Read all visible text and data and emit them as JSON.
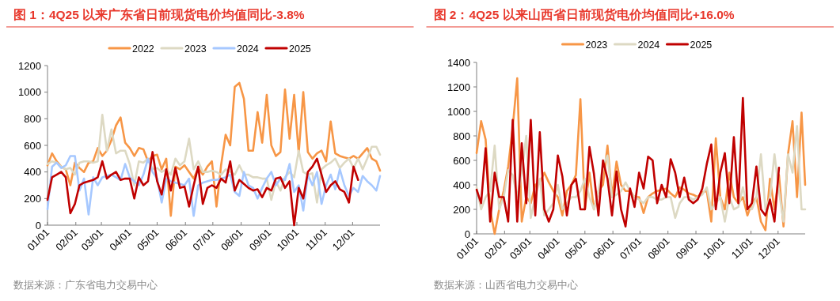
{
  "chart_data": [
    {
      "type": "line",
      "title": "图 1：4Q25 以来广东省日前现货电价均值同比-3.8%",
      "annotations": [
        "数据来源：广东省电力交易中心"
      ],
      "legend": "top",
      "x": [
        "--01-01",
        "--01-06",
        "--01-11",
        "--01-16",
        "--01-21",
        "--01-26",
        "--01-31",
        "--02-05",
        "--02-10",
        "--02-15",
        "--02-20",
        "--02-25",
        "--03-02",
        "--03-07",
        "--03-12",
        "--03-17",
        "--03-22",
        "--03-27",
        "--04-01",
        "--04-06",
        "--04-11",
        "--04-16",
        "--04-21",
        "--04-26",
        "--05-01",
        "--05-06",
        "--05-11",
        "--05-16",
        "--05-21",
        "--05-26",
        "--05-31",
        "--06-05",
        "--06-10",
        "--06-15",
        "--06-20",
        "--06-25",
        "--06-30",
        "--07-05",
        "--07-10",
        "--07-15",
        "--07-20",
        "--07-25",
        "--07-30",
        "--08-04",
        "--08-09",
        "--08-14",
        "--08-19",
        "--08-24",
        "--08-29",
        "--09-03",
        "--09-08",
        "--09-13",
        "--09-18",
        "--09-23",
        "--09-28",
        "--10-03",
        "--10-08",
        "--10-13",
        "--10-18",
        "--10-23",
        "--10-28",
        "--11-02",
        "--11-07",
        "--11-12",
        "--11-17",
        "--11-22",
        "--11-27",
        "--12-02",
        "--12-07",
        "--12-12",
        "--12-17",
        "--12-22",
        "--12-27",
        "--12-31"
      ],
      "xlim": [
        "--01-01",
        "--12-31"
      ],
      "xticks": [
        {
          "value": "--01-01",
          "label": "01/01"
        },
        {
          "value": "--02-01",
          "label": "02/01"
        },
        {
          "value": "--03-01",
          "label": "03/01"
        },
        {
          "value": "--04-01",
          "label": "04/01"
        },
        {
          "value": "--05-01",
          "label": "05/01"
        },
        {
          "value": "--06-01",
          "label": "06/01"
        },
        {
          "value": "--07-01",
          "label": "07/01"
        },
        {
          "value": "--08-01",
          "label": "08/01"
        },
        {
          "value": "--09-01",
          "label": "09/01"
        },
        {
          "value": "--10-01",
          "label": "10/01"
        },
        {
          "value": "--11-01",
          "label": "11/01"
        },
        {
          "value": "--12-01",
          "label": "12/01"
        }
      ],
      "ylim": [
        0,
        1200
      ],
      "yticks": [
        0,
        200,
        400,
        600,
        800,
        1000,
        1200
      ],
      "series": [
        {
          "name": "2022",
          "color": "#f79646",
          "values": [
            450,
            540,
            480,
            440,
            420,
            300,
            470,
            430,
            400,
            470,
            480,
            580,
            520,
            560,
            640,
            750,
            810,
            620,
            580,
            520,
            580,
            570,
            480,
            520,
            530,
            420,
            500,
            70,
            440,
            420,
            450,
            400,
            350,
            430,
            380,
            440,
            480,
            140,
            450,
            680,
            600,
            1040,
            1070,
            950,
            560,
            560,
            850,
            620,
            980,
            600,
            520,
            550,
            1020,
            650,
            980,
            540,
            1000,
            550,
            500,
            540,
            560,
            480,
            780,
            540,
            520,
            510,
            500,
            520,
            500,
            540,
            580,
            500,
            480,
            410
          ]
        },
        {
          "name": "2023",
          "color": "#ddd9c3",
          "values": [
            460,
            480,
            470,
            440,
            420,
            430,
            380,
            470,
            480,
            480,
            470,
            480,
            830,
            560,
            720,
            540,
            560,
            560,
            460,
            300,
            480,
            470,
            500,
            420,
            430,
            400,
            420,
            380,
            500,
            450,
            480,
            650,
            420,
            480,
            400,
            400,
            410,
            400,
            380,
            420,
            400,
            380,
            450,
            380,
            380,
            360,
            360,
            350,
            350,
            190,
            330,
            260,
            360,
            400,
            360,
            560,
            400,
            380,
            390,
            170,
            420,
            450,
            470,
            500,
            430,
            470,
            500,
            430,
            500,
            420,
            500,
            590,
            590,
            530
          ]
        },
        {
          "name": "2024",
          "color": "#a6c8ff",
          "values": [
            120,
            440,
            470,
            430,
            450,
            520,
            520,
            260,
            350,
            80,
            360,
            300,
            360,
            370,
            380,
            360,
            340,
            460,
            360,
            330,
            300,
            380,
            500,
            400,
            350,
            170,
            350,
            330,
            320,
            310,
            300,
            350,
            70,
            300,
            320,
            330,
            340,
            340,
            350,
            360,
            380,
            250,
            220,
            400,
            300,
            280,
            200,
            280,
            350,
            400,
            300,
            350,
            340,
            460,
            250,
            300,
            110,
            380,
            300,
            400,
            160,
            300,
            380,
            270,
            420,
            300,
            220,
            280,
            250,
            370,
            330,
            300,
            260,
            370
          ]
        },
        {
          "name": "2025",
          "color": "#c00000",
          "values": [
            190,
            360,
            380,
            400,
            360,
            90,
            160,
            300,
            320,
            330,
            340,
            360,
            480,
            350,
            380,
            400,
            340,
            350,
            350,
            200,
            360,
            300,
            330,
            550,
            330,
            230,
            420,
            260,
            430,
            280,
            290,
            140,
            300,
            440,
            160,
            280,
            300,
            280,
            350,
            320,
            480,
            260,
            340,
            310,
            280,
            260,
            270,
            210,
            280,
            260,
            350,
            360,
            280,
            330,
            0,
            280,
            200,
            400,
            440,
            500,
            380,
            250,
            300,
            330,
            270,
            250,
            170,
            440,
            340,
            null,
            null,
            null,
            null,
            null
          ]
        }
      ]
    },
    {
      "type": "line",
      "title": "图 2：4Q25 以来山西省日前现货电价均值同比+16.0%",
      "annotations": [
        "数据来源：山西省电力交易中心"
      ],
      "legend": "top",
      "x": [
        "--01-01",
        "--01-06",
        "--01-11",
        "--01-16",
        "--01-21",
        "--01-26",
        "--01-31",
        "--02-05",
        "--02-10",
        "--02-15",
        "--02-20",
        "--02-25",
        "--03-02",
        "--03-07",
        "--03-12",
        "--03-17",
        "--03-22",
        "--03-27",
        "--04-01",
        "--04-06",
        "--04-11",
        "--04-16",
        "--04-21",
        "--04-26",
        "--05-01",
        "--05-06",
        "--05-11",
        "--05-16",
        "--05-21",
        "--05-26",
        "--05-31",
        "--06-05",
        "--06-10",
        "--06-15",
        "--06-20",
        "--06-25",
        "--06-30",
        "--07-05",
        "--07-10",
        "--07-15",
        "--07-20",
        "--07-25",
        "--07-30",
        "--08-04",
        "--08-09",
        "--08-14",
        "--08-19",
        "--08-24",
        "--08-29",
        "--09-03",
        "--09-08",
        "--09-13",
        "--09-18",
        "--09-23",
        "--09-28",
        "--10-03",
        "--10-08",
        "--10-13",
        "--10-18",
        "--10-23",
        "--10-28",
        "--11-02",
        "--11-07",
        "--11-12",
        "--11-17",
        "--11-22",
        "--11-27",
        "--12-02",
        "--12-07",
        "--12-12",
        "--12-17",
        "--12-22",
        "--12-27",
        "--12-31"
      ],
      "xlim": [
        "--01-01",
        "--12-31"
      ],
      "xticks": [
        {
          "value": "--01-01",
          "label": "01/01"
        },
        {
          "value": "--02-01",
          "label": "02/01"
        },
        {
          "value": "--03-01",
          "label": "03/01"
        },
        {
          "value": "--04-01",
          "label": "04/01"
        },
        {
          "value": "--05-01",
          "label": "05/01"
        },
        {
          "value": "--06-01",
          "label": "06/01"
        },
        {
          "value": "--07-01",
          "label": "07/01"
        },
        {
          "value": "--08-01",
          "label": "08/01"
        },
        {
          "value": "--09-01",
          "label": "09/01"
        },
        {
          "value": "--10-01",
          "label": "10/01"
        },
        {
          "value": "--11-01",
          "label": "11/01"
        },
        {
          "value": "--12-01",
          "label": "12/01"
        }
      ],
      "ylim": [
        0,
        1400
      ],
      "yticks": [
        0,
        200,
        400,
        600,
        800,
        1000,
        1200,
        1400
      ],
      "series": [
        {
          "name": "2023",
          "color": "#f79646",
          "values": [
            660,
            920,
            770,
            200,
            0,
            200,
            350,
            550,
            870,
            1270,
            100,
            300,
            250,
            400,
            420,
            500,
            420,
            350,
            300,
            150,
            350,
            400,
            480,
            1100,
            200,
            500,
            200,
            350,
            400,
            720,
            300,
            590,
            400,
            350,
            350,
            300,
            300,
            170,
            300,
            330,
            350,
            360,
            370,
            330,
            300,
            380,
            360,
            330,
            320,
            300,
            340,
            350,
            100,
            780,
            300,
            200,
            500,
            300,
            250,
            300,
            150,
            250,
            300,
            100,
            30,
            450,
            200,
            480,
            60,
            650,
            920,
            300,
            990,
            400
          ]
        },
        {
          "name": "2024",
          "color": "#ddd9c3",
          "values": [
            380,
            200,
            300,
            350,
            720,
            200,
            300,
            520,
            480,
            300,
            500,
            800,
            130,
            300,
            450,
            150,
            200,
            250,
            400,
            200,
            250,
            300,
            300,
            350,
            450,
            300,
            200,
            350,
            560,
            640,
            300,
            320,
            350,
            420,
            350,
            300,
            280,
            250,
            300,
            300,
            280,
            280,
            300,
            300,
            130,
            250,
            300,
            300,
            280,
            300,
            320,
            380,
            200,
            250,
            300,
            100,
            300,
            200,
            220,
            380,
            220,
            200,
            300,
            650,
            200,
            300,
            650,
            350,
            100,
            650,
            500,
            880,
            200,
            200
          ]
        },
        {
          "name": "2025",
          "color": "#c00000",
          "values": [
            360,
            250,
            700,
            100,
            500,
            300,
            300,
            100,
            930,
            100,
            740,
            250,
            930,
            150,
            830,
            200,
            100,
            200,
            640,
            470,
            150,
            400,
            450,
            200,
            200,
            710,
            490,
            150,
            600,
            450,
            150,
            510,
            200,
            60,
            370,
            220,
            500,
            370,
            630,
            600,
            250,
            400,
            300,
            610,
            500,
            300,
            460,
            280,
            250,
            280,
            370,
            570,
            730,
            200,
            500,
            660,
            250,
            790,
            250,
            1110,
            200,
            250,
            550,
            200,
            150,
            280,
            100,
            540,
            null,
            null,
            null,
            null,
            null,
            null
          ]
        }
      ]
    }
  ]
}
